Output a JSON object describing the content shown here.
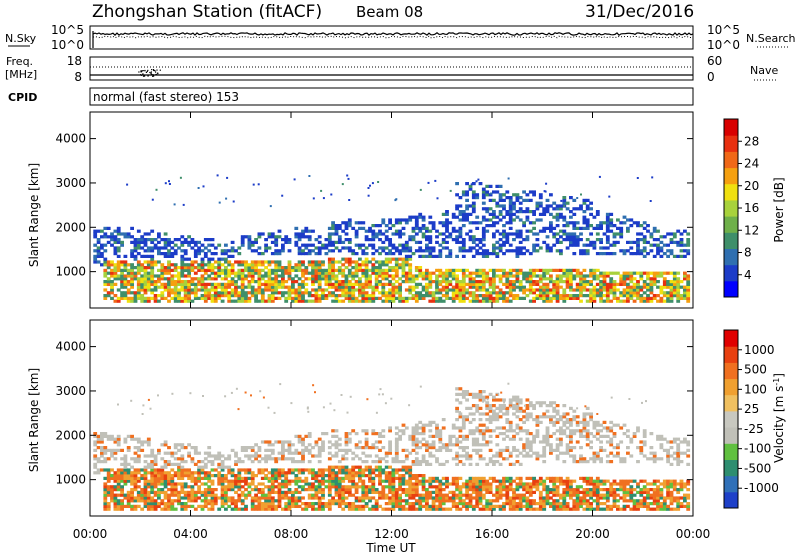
{
  "header": {
    "station": "Zhongshan Station (fitACF)",
    "beam": "Beam 08",
    "date": "31/Dec/2016"
  },
  "chart_data": [
    {
      "panel": "noise",
      "type": "line",
      "left_label": "N.Sky",
      "left_ticks": [
        "10^5",
        "10^0"
      ],
      "right_ticks": [
        "10^5",
        "10^0"
      ],
      "legend": "N.Search"
    },
    {
      "panel": "frequency",
      "type": "scatter",
      "left_label": [
        "Freq.",
        "[MHz]"
      ],
      "left_ticks": [
        18,
        8
      ],
      "right_ticks": [
        60,
        0
      ],
      "legend": "Nave"
    },
    {
      "panel": "cpid",
      "type": "table",
      "label": "CPID",
      "text": "normal (fast stereo) 153"
    },
    {
      "panel": "power",
      "type": "heatmap",
      "ylabel": "Slant Range [km]",
      "yticks": [
        1000,
        2000,
        3000,
        4000
      ],
      "ylim": [
        180,
        4600
      ],
      "xlim": [
        0,
        24
      ],
      "colorbar_label": "Power [dB]",
      "colorbar_ticks": [
        4,
        8,
        12,
        16,
        20,
        24,
        28
      ],
      "colorbar_colors": [
        "#0000ff",
        "#1c3cc8",
        "#2f6fb0",
        "#3f8f6a",
        "#6fb04a",
        "#a8d23c",
        "#f0e010",
        "#f5a010",
        "#f06818",
        "#e83010",
        "#d80000"
      ]
    },
    {
      "panel": "velocity",
      "type": "heatmap",
      "ylabel": "Slant Range [km]",
      "yticks": [
        1000,
        2000,
        3000,
        4000
      ],
      "ylim": [
        180,
        4600
      ],
      "xlim": [
        0,
        24
      ],
      "xticks": [
        "00:00",
        "04:00",
        "08:00",
        "12:00",
        "16:00",
        "20:00",
        "00:00"
      ],
      "xlabel": "Time UT",
      "colorbar_label": "Velocity [m s^-1]",
      "colorbar_ticks": [
        "1000",
        "500",
        "100",
        "25",
        "-25",
        "-100",
        "-500",
        "-1000"
      ],
      "colorbar_colors": [
        "#1e40c8",
        "#3070b8",
        "#2e8e70",
        "#60c040",
        "#c0c0b8",
        "#c8c8c0",
        "#f0c060",
        "#f0a030",
        "#f07020",
        "#e84010",
        "#e00000"
      ]
    }
  ]
}
